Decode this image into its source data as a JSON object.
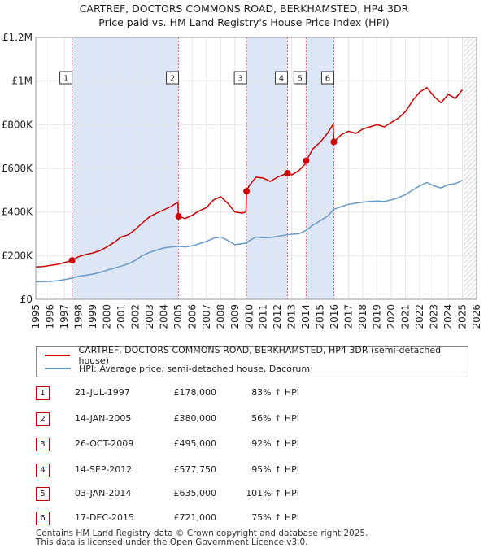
{
  "title_line1": "CARTREF, DOCTORS COMMONS ROAD, BERKHAMSTED, HP4 3DR",
  "title_line2": "Price paid vs. HM Land Registry's House Price Index (HPI)",
  "legend": {
    "property_label": "CARTREF, DOCTORS COMMONS ROAD, BERKHAMSTED, HP4 3DR (semi-detached house)",
    "hpi_label": "HPI: Average price, semi-detached house, Dacorum"
  },
  "colors": {
    "property": "#cc0000",
    "hpi": "#6699cc",
    "shade": "#dde6f7",
    "vline": "#e06666",
    "hatch": "#bbbbbb"
  },
  "sales": [
    {
      "num": "1",
      "date": "21-JUL-1997",
      "price": "£178,000",
      "hpi": "83% ↑ HPI",
      "year": 1997.55,
      "value": 178000
    },
    {
      "num": "2",
      "date": "14-JAN-2005",
      "price": "£380,000",
      "hpi": "56% ↑ HPI",
      "year": 2005.04,
      "value": 380000
    },
    {
      "num": "3",
      "date": "26-OCT-2009",
      "price": "£495,000",
      "hpi": "92% ↑ HPI",
      "year": 2009.82,
      "value": 495000
    },
    {
      "num": "4",
      "date": "14-SEP-2012",
      "price": "£577,750",
      "hpi": "95% ↑ HPI",
      "year": 2012.7,
      "value": 577750
    },
    {
      "num": "5",
      "date": "03-JAN-2014",
      "price": "£635,000",
      "hpi": "101% ↑ HPI",
      "year": 2014.01,
      "value": 635000
    },
    {
      "num": "6",
      "date": "17-DEC-2015",
      "price": "£721,000",
      "hpi": "75% ↑ HPI",
      "year": 2015.96,
      "value": 721000
    }
  ],
  "footer_line1": "Contains HM Land Registry data © Crown copyright and database right 2025.",
  "footer_line2": "This data is licensed under the Open Government Licence v3.0.",
  "chart_data": {
    "type": "line",
    "title": "CARTREF, DOCTORS COMMONS ROAD, BERKHAMSTED, HP4 3DR\nPrice paid vs. HM Land Registry's House Price Index (HPI)",
    "xlabel": "",
    "ylabel": "",
    "xlim": [
      1995,
      2026
    ],
    "ylim": [
      0,
      1200000
    ],
    "x_ticks": [
      "1995",
      "1996",
      "1997",
      "1998",
      "1999",
      "2000",
      "2001",
      "2002",
      "2003",
      "2004",
      "2005",
      "2006",
      "2007",
      "2008",
      "2009",
      "2010",
      "2011",
      "2012",
      "2013",
      "2014",
      "2015",
      "2016",
      "2017",
      "2018",
      "2019",
      "2020",
      "2021",
      "2022",
      "2023",
      "2024",
      "2025",
      "2026"
    ],
    "y_ticks": [
      {
        "value": 0,
        "label": "£0"
      },
      {
        "value": 200000,
        "label": "£200K"
      },
      {
        "value": 400000,
        "label": "£400K"
      },
      {
        "value": 600000,
        "label": "£600K"
      },
      {
        "value": 800000,
        "label": "£800K"
      },
      {
        "value": 1000000,
        "label": "£1M"
      },
      {
        "value": 1200000,
        "label": "£1.2M"
      }
    ],
    "grid": true,
    "legend_position": "below chart",
    "shaded_periods": [
      [
        1997.55,
        2005.04
      ],
      [
        2009.82,
        2012.7
      ],
      [
        2014.01,
        2015.96
      ]
    ],
    "future_hatch_from": 2025.1,
    "series": [
      {
        "name": "CARTREF, DOCTORS COMMONS ROAD, BERKHAMSTED, HP4 3DR (semi-detached house)",
        "x": [
          1995.0,
          1995.5,
          1996.0,
          1996.5,
          1997.0,
          1997.55,
          1998.0,
          1998.5,
          1999.0,
          1999.5,
          2000.0,
          2000.5,
          2001.0,
          2001.5,
          2002.0,
          2002.5,
          2003.0,
          2003.5,
          2004.0,
          2004.5,
          2004.99,
          2005.04,
          2005.5,
          2006.0,
          2006.5,
          2007.0,
          2007.5,
          2008.0,
          2008.5,
          2009.0,
          2009.5,
          2009.78,
          2009.82,
          2010.0,
          2010.5,
          2011.0,
          2011.5,
          2012.0,
          2012.7,
          2013.0,
          2013.5,
          2013.95,
          2014.01,
          2014.5,
          2015.0,
          2015.5,
          2015.9,
          2015.96,
          2016.5,
          2017.0,
          2017.5,
          2018.0,
          2018.5,
          2019.0,
          2019.5,
          2020.0,
          2020.5,
          2021.0,
          2021.5,
          2022.0,
          2022.5,
          2023.0,
          2023.5,
          2024.0,
          2024.5,
          2025.0
        ],
        "values": [
          148000,
          150000,
          155000,
          160000,
          168000,
          178000,
          195000,
          205000,
          212000,
          222000,
          240000,
          260000,
          285000,
          295000,
          320000,
          350000,
          378000,
          395000,
          410000,
          425000,
          445000,
          380000,
          370000,
          385000,
          405000,
          420000,
          455000,
          470000,
          440000,
          400000,
          395000,
          400000,
          495000,
          520000,
          560000,
          555000,
          540000,
          560000,
          577750,
          570000,
          590000,
          620000,
          635000,
          690000,
          720000,
          760000,
          800000,
          721000,
          755000,
          770000,
          760000,
          780000,
          790000,
          800000,
          790000,
          810000,
          830000,
          860000,
          910000,
          950000,
          970000,
          930000,
          900000,
          940000,
          920000,
          960000
        ]
      },
      {
        "name": "HPI: Average price, semi-detached house, Dacorum",
        "x": [
          1995.0,
          1995.5,
          1996.0,
          1996.5,
          1997.0,
          1997.55,
          1998.0,
          1998.5,
          1999.0,
          1999.5,
          2000.0,
          2000.5,
          2001.0,
          2001.5,
          2002.0,
          2002.5,
          2003.0,
          2003.5,
          2004.0,
          2004.5,
          2005.04,
          2005.5,
          2006.0,
          2006.5,
          2007.0,
          2007.5,
          2008.0,
          2008.5,
          2009.0,
          2009.5,
          2009.82,
          2010.0,
          2010.5,
          2011.0,
          2011.5,
          2012.0,
          2012.7,
          2013.0,
          2013.5,
          2014.01,
          2014.5,
          2015.0,
          2015.5,
          2015.96,
          2016.5,
          2017.0,
          2017.5,
          2018.0,
          2018.5,
          2019.0,
          2019.5,
          2020.0,
          2020.5,
          2021.0,
          2021.5,
          2022.0,
          2022.5,
          2023.0,
          2023.5,
          2024.0,
          2024.5,
          2025.0
        ],
        "values": [
          80000,
          81000,
          82000,
          85000,
          90000,
          97000,
          105000,
          110000,
          115000,
          123000,
          133000,
          142000,
          152000,
          162000,
          178000,
          200000,
          215000,
          225000,
          235000,
          240000,
          243000,
          240000,
          245000,
          255000,
          265000,
          280000,
          285000,
          270000,
          250000,
          255000,
          258000,
          268000,
          285000,
          282000,
          283000,
          288000,
          296000,
          298000,
          300000,
          316000,
          340000,
          360000,
          380000,
          412000,
          425000,
          435000,
          440000,
          445000,
          448000,
          450000,
          448000,
          455000,
          465000,
          480000,
          500000,
          520000,
          535000,
          520000,
          510000,
          525000,
          530000,
          545000
        ]
      }
    ]
  }
}
